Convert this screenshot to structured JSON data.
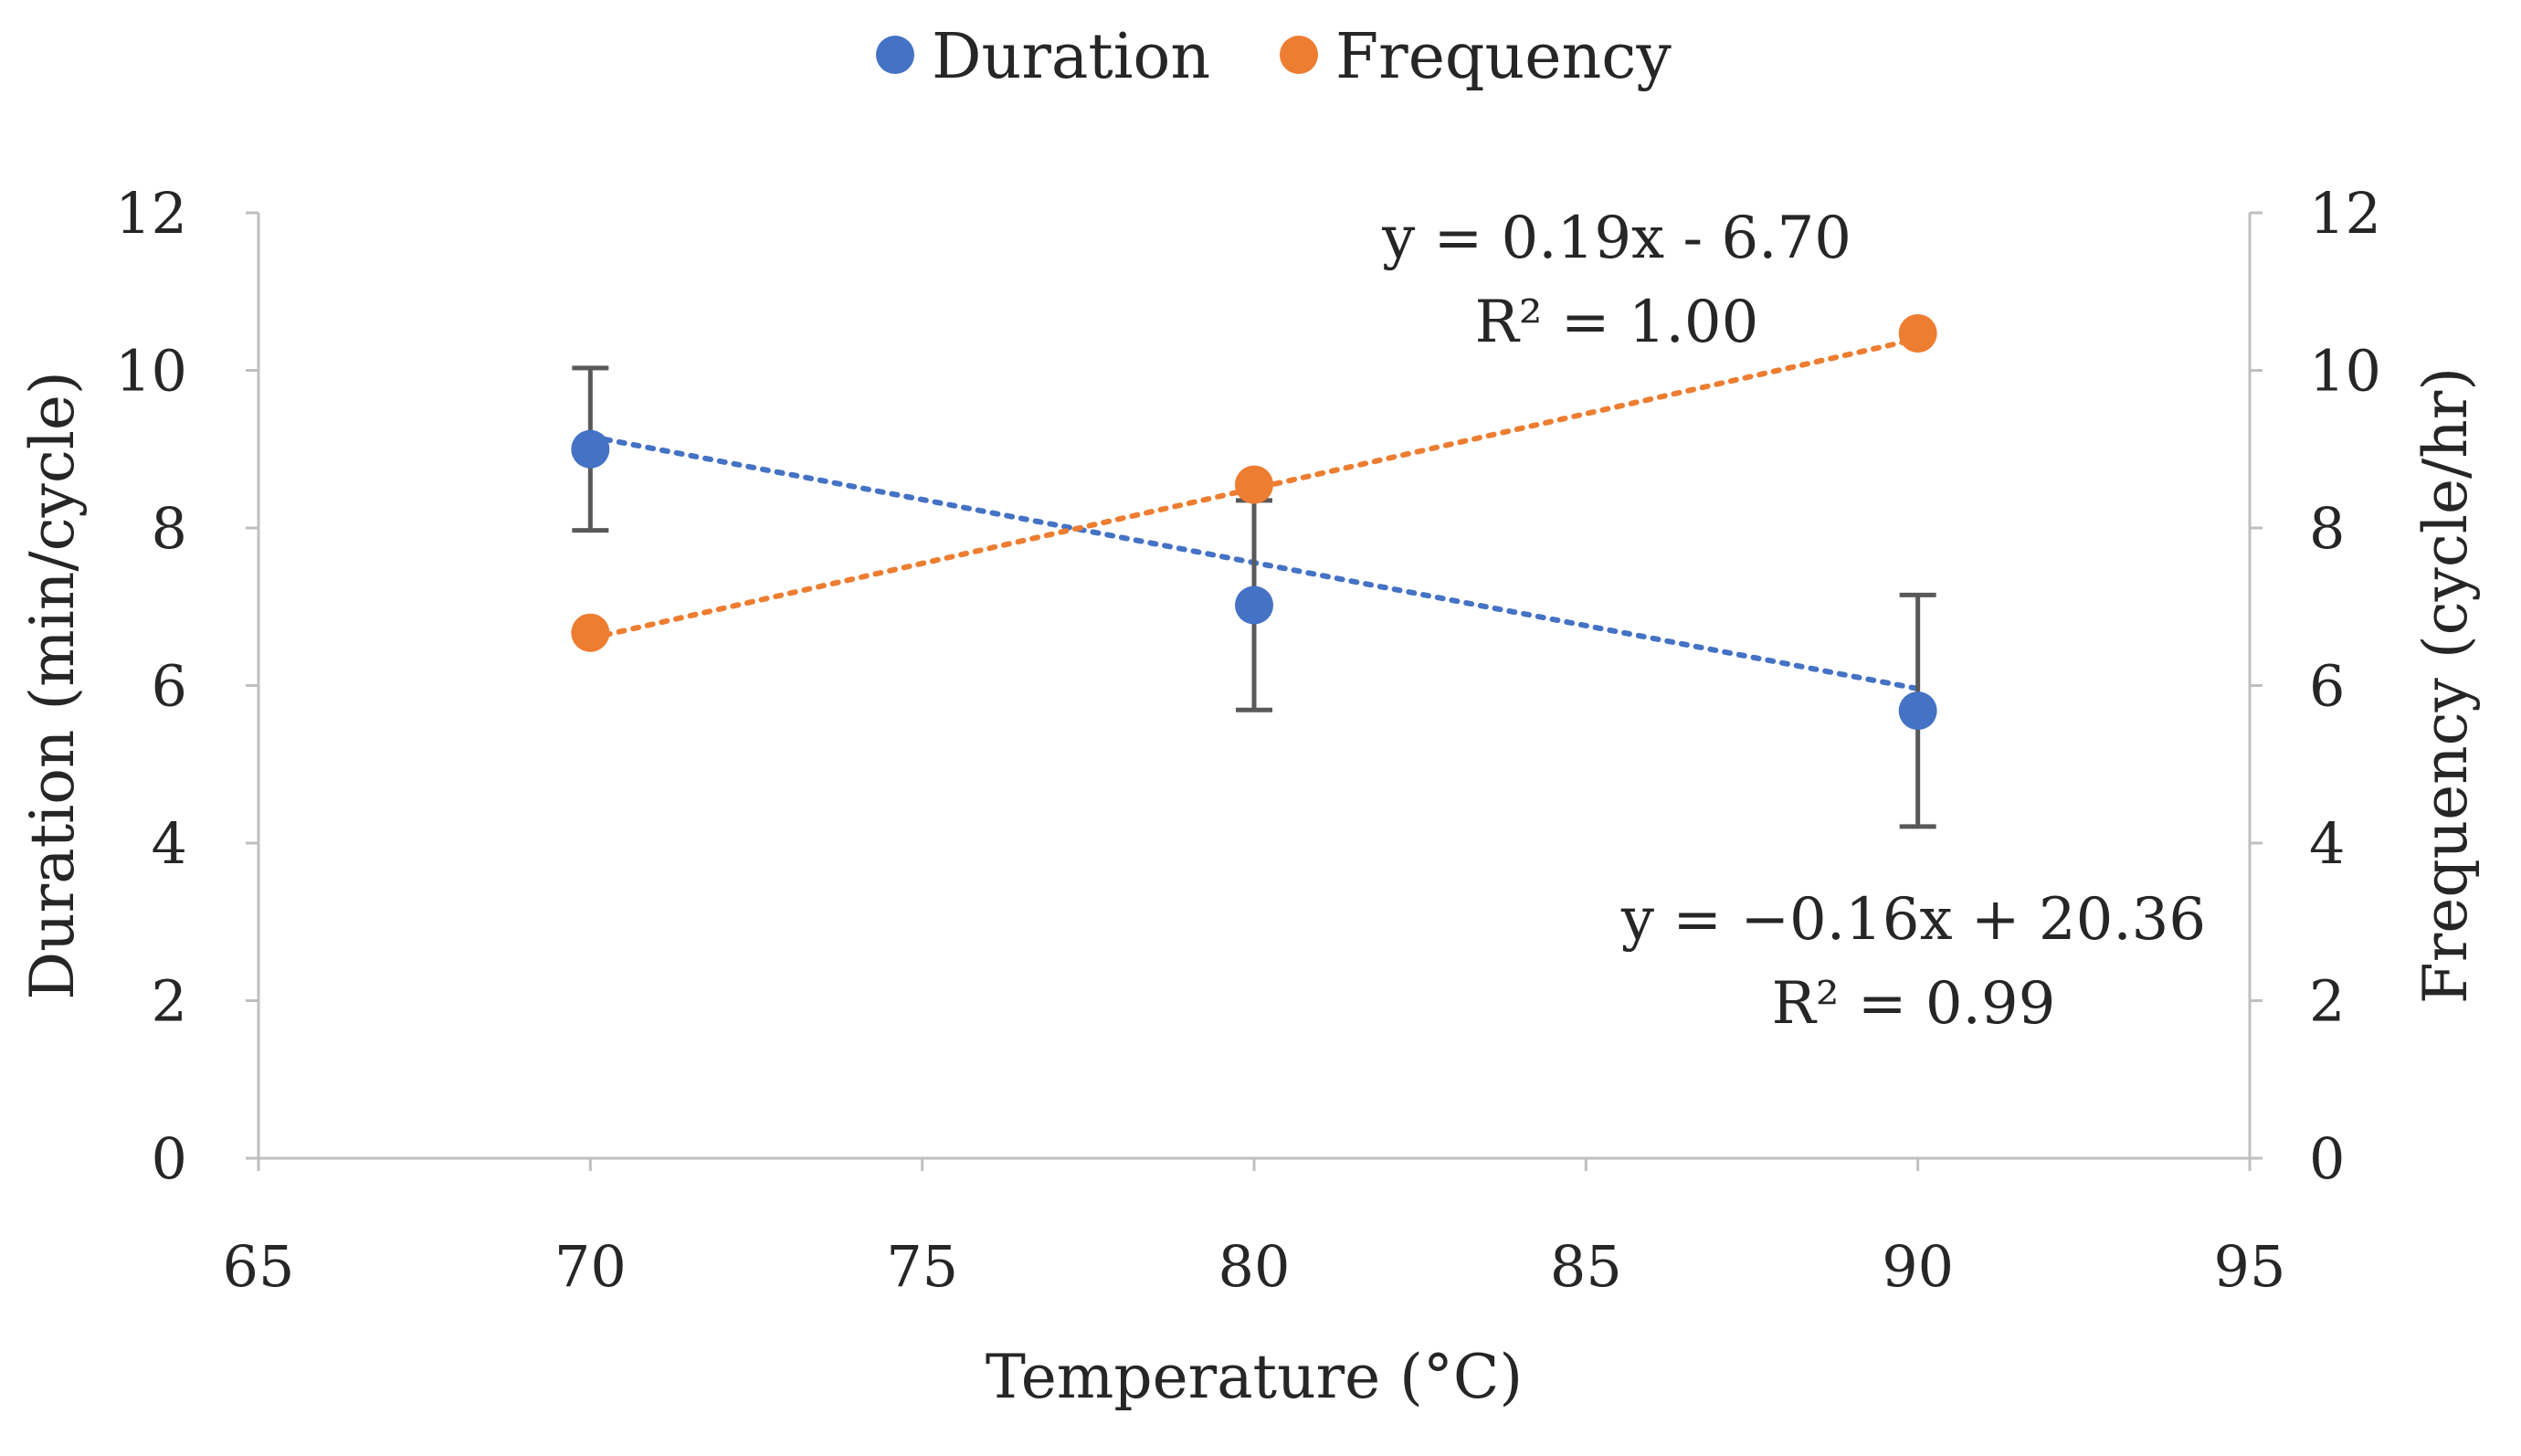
{
  "chart_data": {
    "type": "scatter",
    "title": "",
    "xlabel": "Temperature (°C)",
    "ylabel_left": "Duration (min/cycle)",
    "ylabel_right": "Frequency (cycle/hr)",
    "xlim": [
      65,
      95
    ],
    "x_ticks": [
      65,
      70,
      75,
      80,
      85,
      90,
      95
    ],
    "ylim_left": [
      0,
      12
    ],
    "ylim_right": [
      0,
      12
    ],
    "y_ticks": [
      0,
      2,
      4,
      6,
      8,
      10,
      12
    ],
    "grid": false,
    "legend_position": "top-center",
    "series": [
      {
        "name": "Duration",
        "axis": "left",
        "color": "#4472C4",
        "x": [
          70,
          80,
          90
        ],
        "y": [
          9.0,
          7.02,
          5.68
        ],
        "error": [
          1.03,
          1.33,
          1.47
        ],
        "trendline": {
          "type": "linear",
          "slope": -0.16,
          "intercept": 20.36
        }
      },
      {
        "name": "Frequency",
        "axis": "right",
        "color": "#ED7D31",
        "x": [
          70,
          80,
          90
        ],
        "y": [
          6.67,
          8.55,
          10.47
        ],
        "trendline": {
          "type": "linear",
          "slope": 0.19,
          "intercept": -6.7
        }
      }
    ],
    "annotations": [
      {
        "lines": [
          "y = 0.19x - 6.70",
          "R² = 1.00"
        ]
      },
      {
        "lines": [
          "y = −0.16x + 20.36",
          "R² = 0.99"
        ]
      }
    ]
  }
}
